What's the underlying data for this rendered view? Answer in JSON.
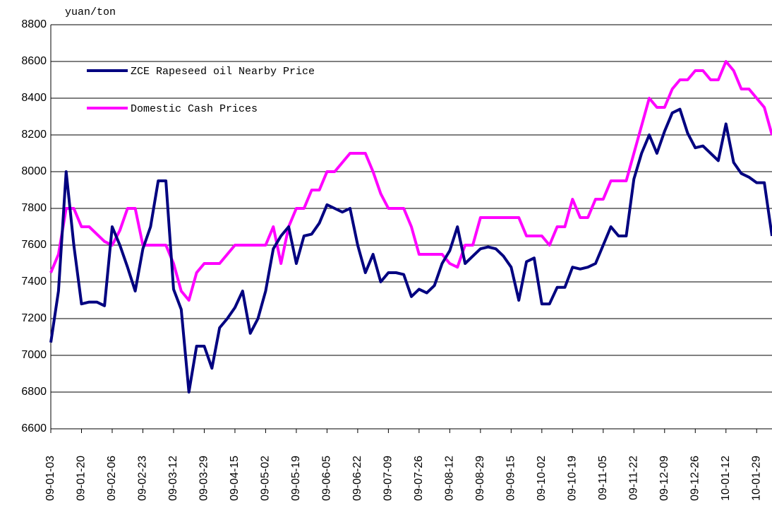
{
  "chart_data": {
    "type": "line",
    "y_label": "yuan/ton",
    "categories": [
      "09-01-03",
      null,
      null,
      null,
      "09-01-20",
      null,
      null,
      null,
      "09-02-06",
      null,
      null,
      null,
      "09-02-23",
      null,
      null,
      null,
      "09-03-12",
      null,
      null,
      null,
      "09-03-29",
      null,
      null,
      null,
      "09-04-15",
      null,
      null,
      null,
      "09-05-02",
      null,
      null,
      null,
      "09-05-19",
      null,
      null,
      null,
      "09-06-05",
      null,
      null,
      null,
      "09-06-22",
      null,
      null,
      null,
      "09-07-09",
      null,
      null,
      null,
      "09-07-26",
      null,
      null,
      null,
      "09-08-12",
      null,
      null,
      null,
      "09-08-29",
      null,
      null,
      null,
      "09-09-15",
      null,
      null,
      null,
      "09-10-02",
      null,
      null,
      null,
      "09-10-19",
      null,
      null,
      null,
      "09-11-05",
      null,
      null,
      null,
      "09-11-22",
      null,
      null,
      null,
      "09-12-09",
      null,
      null,
      null,
      "09-12-26",
      null,
      null,
      null,
      "10-01-12",
      null,
      null,
      null,
      "10-01-29",
      null,
      null
    ],
    "series": [
      {
        "name": "ZCE Rapeseed oil Nearby Price",
        "color": "#000080",
        "values": [
          7070,
          7350,
          8000,
          7600,
          7280,
          7290,
          7290,
          7270,
          7700,
          7600,
          7480,
          7350,
          7580,
          7700,
          7950,
          7950,
          7360,
          7250,
          6800,
          7050,
          7050,
          6930,
          7150,
          7200,
          7260,
          7350,
          7120,
          7200,
          7350,
          7580,
          7650,
          7700,
          7500,
          7650,
          7660,
          7720,
          7820,
          7800,
          7780,
          7800,
          7600,
          7450,
          7550,
          7400,
          7450,
          7450,
          7440,
          7320,
          7360,
          7340,
          7380,
          7500,
          7570,
          7700,
          7500,
          7540,
          7580,
          7590,
          7580,
          7540,
          7480,
          7300,
          7510,
          7530,
          7280,
          7280,
          7370,
          7370,
          7480,
          7470,
          7480,
          7500,
          7600,
          7700,
          7650,
          7650,
          7960,
          8100,
          8200,
          8100,
          8220,
          8320,
          8340,
          8210,
          8130,
          8140,
          8100,
          8060,
          8260,
          8050,
          7990,
          7970,
          7940,
          7940,
          7650
        ]
      },
      {
        "name": "Domestic Cash Prices",
        "color": "#ff00ff",
        "values": [
          7450,
          7550,
          7800,
          7800,
          7700,
          7700,
          7660,
          7620,
          7600,
          7680,
          7800,
          7800,
          7600,
          7600,
          7600,
          7600,
          7500,
          7350,
          7300,
          7450,
          7500,
          7500,
          7500,
          7550,
          7600,
          7600,
          7600,
          7600,
          7600,
          7700,
          7500,
          7700,
          7800,
          7800,
          7900,
          7900,
          8000,
          8000,
          8050,
          8100,
          8100,
          8100,
          8000,
          7880,
          7800,
          7800,
          7800,
          7700,
          7550,
          7550,
          7550,
          7550,
          7500,
          7480,
          7600,
          7600,
          7750,
          7750,
          7750,
          7750,
          7750,
          7750,
          7650,
          7650,
          7650,
          7600,
          7700,
          7700,
          7850,
          7750,
          7750,
          7850,
          7850,
          7950,
          7950,
          7950,
          8100,
          8250,
          8400,
          8350,
          8350,
          8450,
          8500,
          8500,
          8550,
          8550,
          8500,
          8500,
          8600,
          8550,
          8450,
          8450,
          8400,
          8350,
          8200
        ]
      }
    ],
    "ylim": [
      6600,
      8800
    ],
    "yticks": [
      6600,
      6800,
      7000,
      7200,
      7400,
      7600,
      7800,
      8000,
      8200,
      8400,
      8600,
      8800
    ],
    "grid": true
  }
}
